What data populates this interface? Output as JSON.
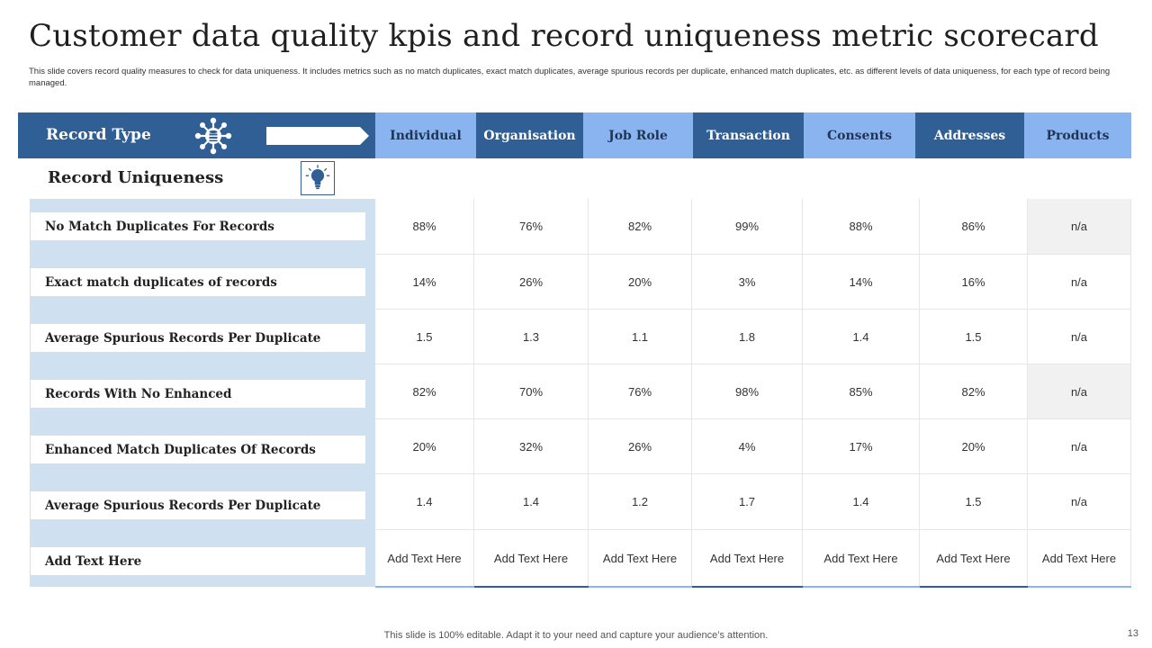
{
  "title": "Customer data quality kpis and record uniqueness metric scorecard",
  "subtitle": "This slide covers record quality measures to check for data uniqueness. It includes metrics such as no match duplicates, exact match duplicates, average spurious records per duplicate, enhanced match duplicates, etc. as different levels of data uniqueness, for each type of record being managed.",
  "header": {
    "record_type": "Record Type",
    "columns": [
      "Individual",
      "Organisation",
      "Job Role",
      "Transaction",
      "Consents",
      "Addresses",
      "Products"
    ]
  },
  "section_label": "Record Uniqueness",
  "rows": [
    {
      "label": "No Match Duplicates For Records",
      "values": [
        "88%",
        "76%",
        "82%",
        "99%",
        "88%",
        "86%",
        "n/a"
      ]
    },
    {
      "label": "Exact match duplicates of records",
      "values": [
        "14%",
        "26%",
        "20%",
        "3%",
        "14%",
        "16%",
        "n/a"
      ]
    },
    {
      "label": "Average  Spurious Records Per Duplicate",
      "values": [
        "1.5",
        "1.3",
        "1.1",
        "1.8",
        "1.4",
        "1.5",
        "n/a"
      ]
    },
    {
      "label": "Records With No Enhanced",
      "values": [
        "82%",
        "70%",
        "76%",
        "98%",
        "85%",
        "82%",
        "n/a"
      ]
    },
    {
      "label": "Enhanced Match Duplicates Of Records",
      "values": [
        "20%",
        "32%",
        "26%",
        "4%",
        "17%",
        "20%",
        "n/a"
      ]
    },
    {
      "label": "Average  Spurious Records Per Duplicate",
      "values": [
        "1.4",
        "1.4",
        "1.2",
        "1.7",
        "1.4",
        "1.5",
        "n/a"
      ]
    },
    {
      "label": "Add Text Here",
      "values": [
        "Add Text Here",
        "Add Text Here",
        "Add Text Here",
        "Add Text Here",
        "Add Text Here",
        "Add Text Here",
        "Add Text Here"
      ]
    }
  ],
  "footer": "This slide is 100% editable. Adapt it to your need and capture your audience’s attention.",
  "page_number": "13",
  "colors": {
    "dark_blue": "#2f5f95",
    "light_blue": "#8ab4f0",
    "panel_blue": "#cfe0f1"
  },
  "icons": {
    "record_type": "database-network-icon",
    "record_uniqueness": "lightbulb-icon",
    "arrow": "right-arrow-icon"
  }
}
